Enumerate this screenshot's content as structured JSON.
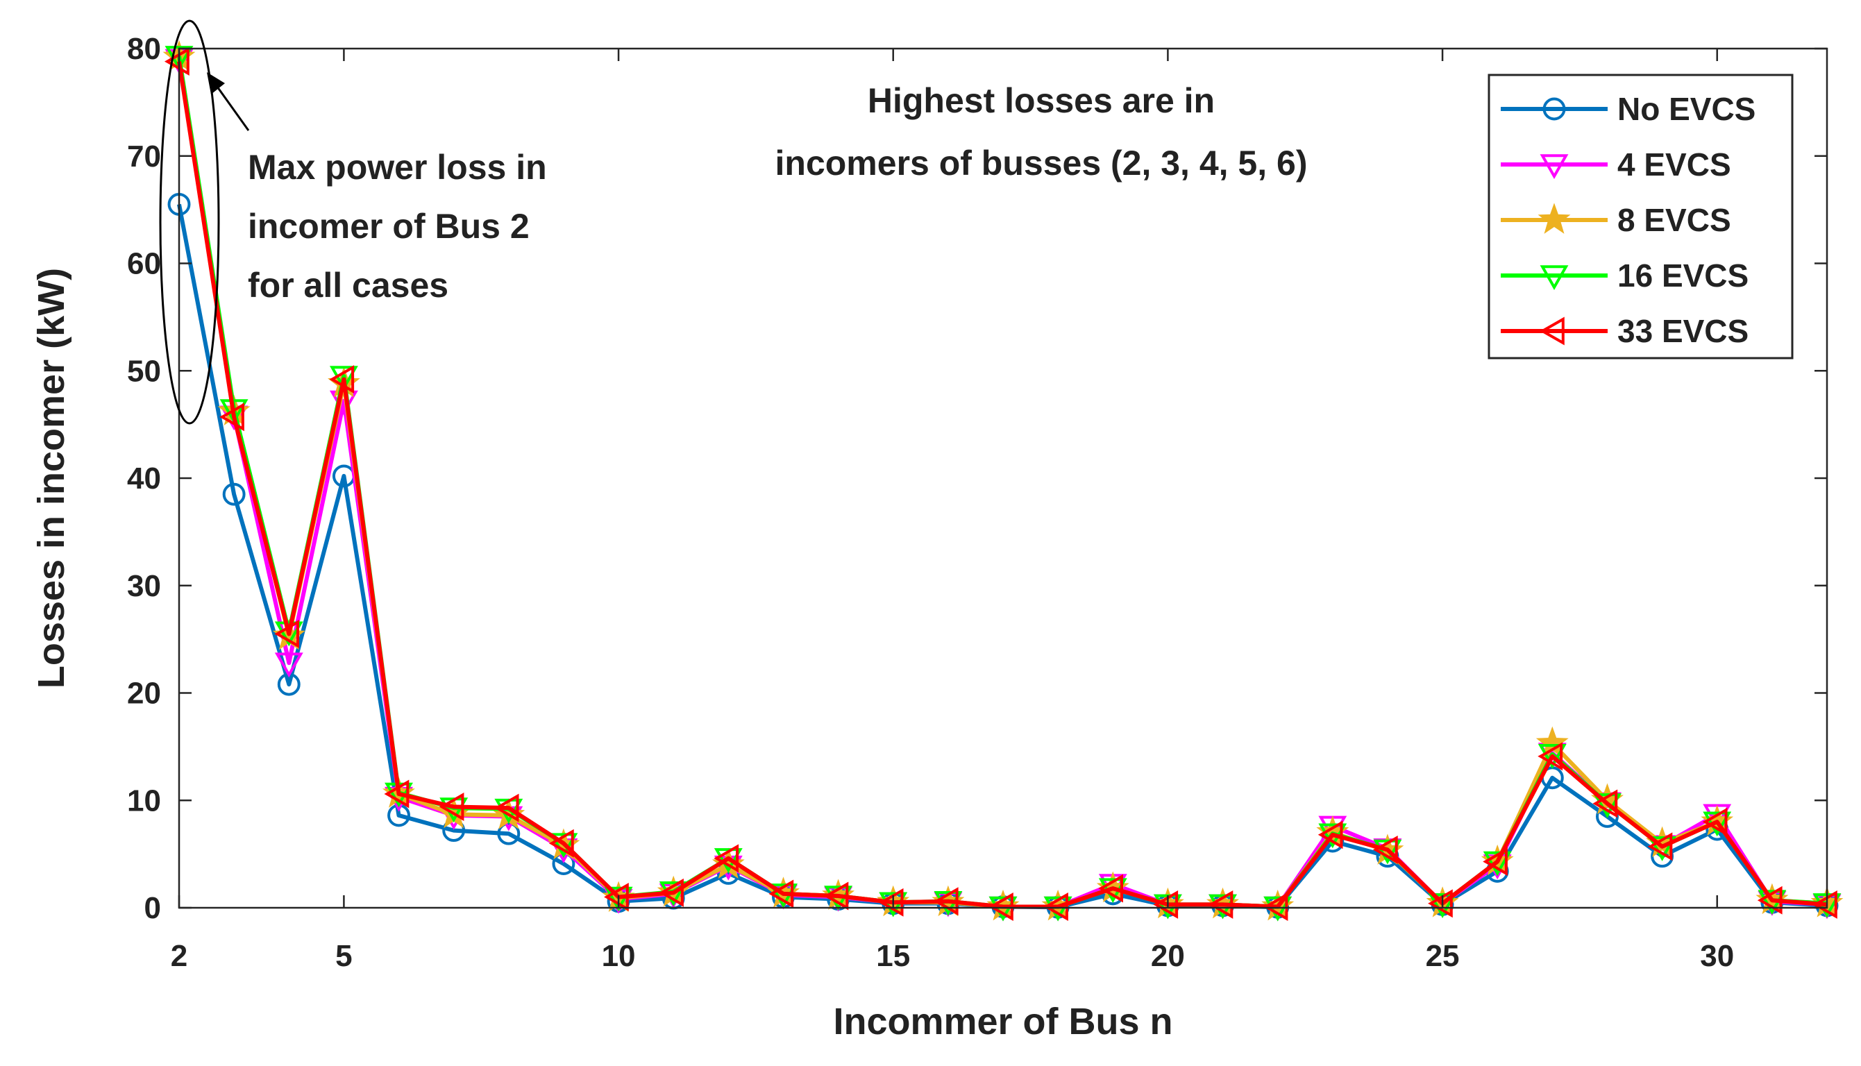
{
  "chart_data": {
    "type": "line",
    "xlabel": "Incommer of Bus n",
    "ylabel": "Losses in incomer (kW)",
    "xlim": [
      2,
      32
    ],
    "ylim": [
      0,
      80
    ],
    "xticks": [
      2,
      5,
      10,
      15,
      20,
      25,
      30
    ],
    "yticks": [
      0,
      10,
      20,
      30,
      40,
      50,
      60,
      70,
      80
    ],
    "grid": false,
    "legend_position": "top-right",
    "x": [
      2,
      3,
      4,
      5,
      6,
      7,
      8,
      9,
      10,
      11,
      12,
      13,
      14,
      15,
      16,
      17,
      18,
      19,
      20,
      21,
      22,
      23,
      24,
      25,
      26,
      27,
      28,
      29,
      30,
      31,
      32
    ],
    "series": [
      {
        "name": "No EVCS",
        "color": "#0072BD",
        "marker": "circle",
        "values": [
          65.5,
          38.5,
          20.8,
          40.2,
          8.6,
          7.2,
          6.9,
          4.1,
          0.6,
          0.9,
          3.2,
          1.0,
          0.8,
          0.4,
          0.4,
          0.1,
          0.05,
          1.3,
          0.2,
          0.2,
          0.05,
          6.2,
          4.8,
          0.3,
          3.4,
          12.1,
          8.5,
          4.8,
          7.3,
          0.5,
          0.2
        ]
      },
      {
        "name": "4 EVCS",
        "color": "#FF00FF",
        "marker": "triangle-down",
        "values": [
          79.0,
          45.8,
          22.8,
          47.2,
          10.3,
          8.6,
          8.5,
          5.5,
          0.8,
          1.3,
          3.9,
          1.2,
          1.0,
          0.5,
          0.5,
          0.1,
          0.1,
          2.2,
          0.3,
          0.3,
          0.1,
          7.6,
          5.5,
          0.4,
          4.0,
          14.4,
          9.8,
          5.8,
          8.7,
          0.6,
          0.3
        ]
      },
      {
        "name": "8 EVCS",
        "color": "#EDB120",
        "marker": "star",
        "values": [
          79.2,
          46.2,
          25.3,
          48.8,
          10.6,
          8.7,
          8.6,
          5.8,
          0.9,
          1.4,
          4.0,
          1.3,
          1.1,
          0.5,
          0.5,
          0.1,
          0.1,
          1.8,
          0.3,
          0.3,
          0.1,
          7.0,
          5.3,
          0.4,
          4.3,
          15.3,
          10.0,
          6.0,
          8.0,
          0.7,
          0.4
        ]
      },
      {
        "name": "16 EVCS",
        "color": "#00FF00",
        "marker": "triangle-down",
        "values": [
          79.3,
          46.4,
          25.7,
          49.5,
          10.7,
          9.3,
          9.2,
          6.0,
          1.0,
          1.5,
          4.6,
          1.3,
          1.1,
          0.5,
          0.6,
          0.1,
          0.1,
          1.8,
          0.3,
          0.3,
          0.1,
          6.9,
          5.4,
          0.4,
          4.3,
          14.3,
          9.7,
          5.7,
          8.0,
          0.7,
          0.4
        ]
      },
      {
        "name": "33 EVCS",
        "color": "#FF0000",
        "marker": "triangle-left",
        "values": [
          78.8,
          45.7,
          25.5,
          49.2,
          10.6,
          9.4,
          9.3,
          6.0,
          1.0,
          1.4,
          4.6,
          1.3,
          1.1,
          0.5,
          0.6,
          0.1,
          0.1,
          1.8,
          0.3,
          0.3,
          0.1,
          6.8,
          5.4,
          0.4,
          4.3,
          14.1,
          9.7,
          5.7,
          8.0,
          0.7,
          0.3
        ]
      }
    ],
    "annotations": [
      {
        "lines": [
          "Highest losses are in",
          "incomers of busses (2, 3, 4, 5, 6)"
        ]
      },
      {
        "lines": [
          "Max power loss in",
          "incomer of Bus 2",
          "for all cases"
        ]
      }
    ]
  }
}
